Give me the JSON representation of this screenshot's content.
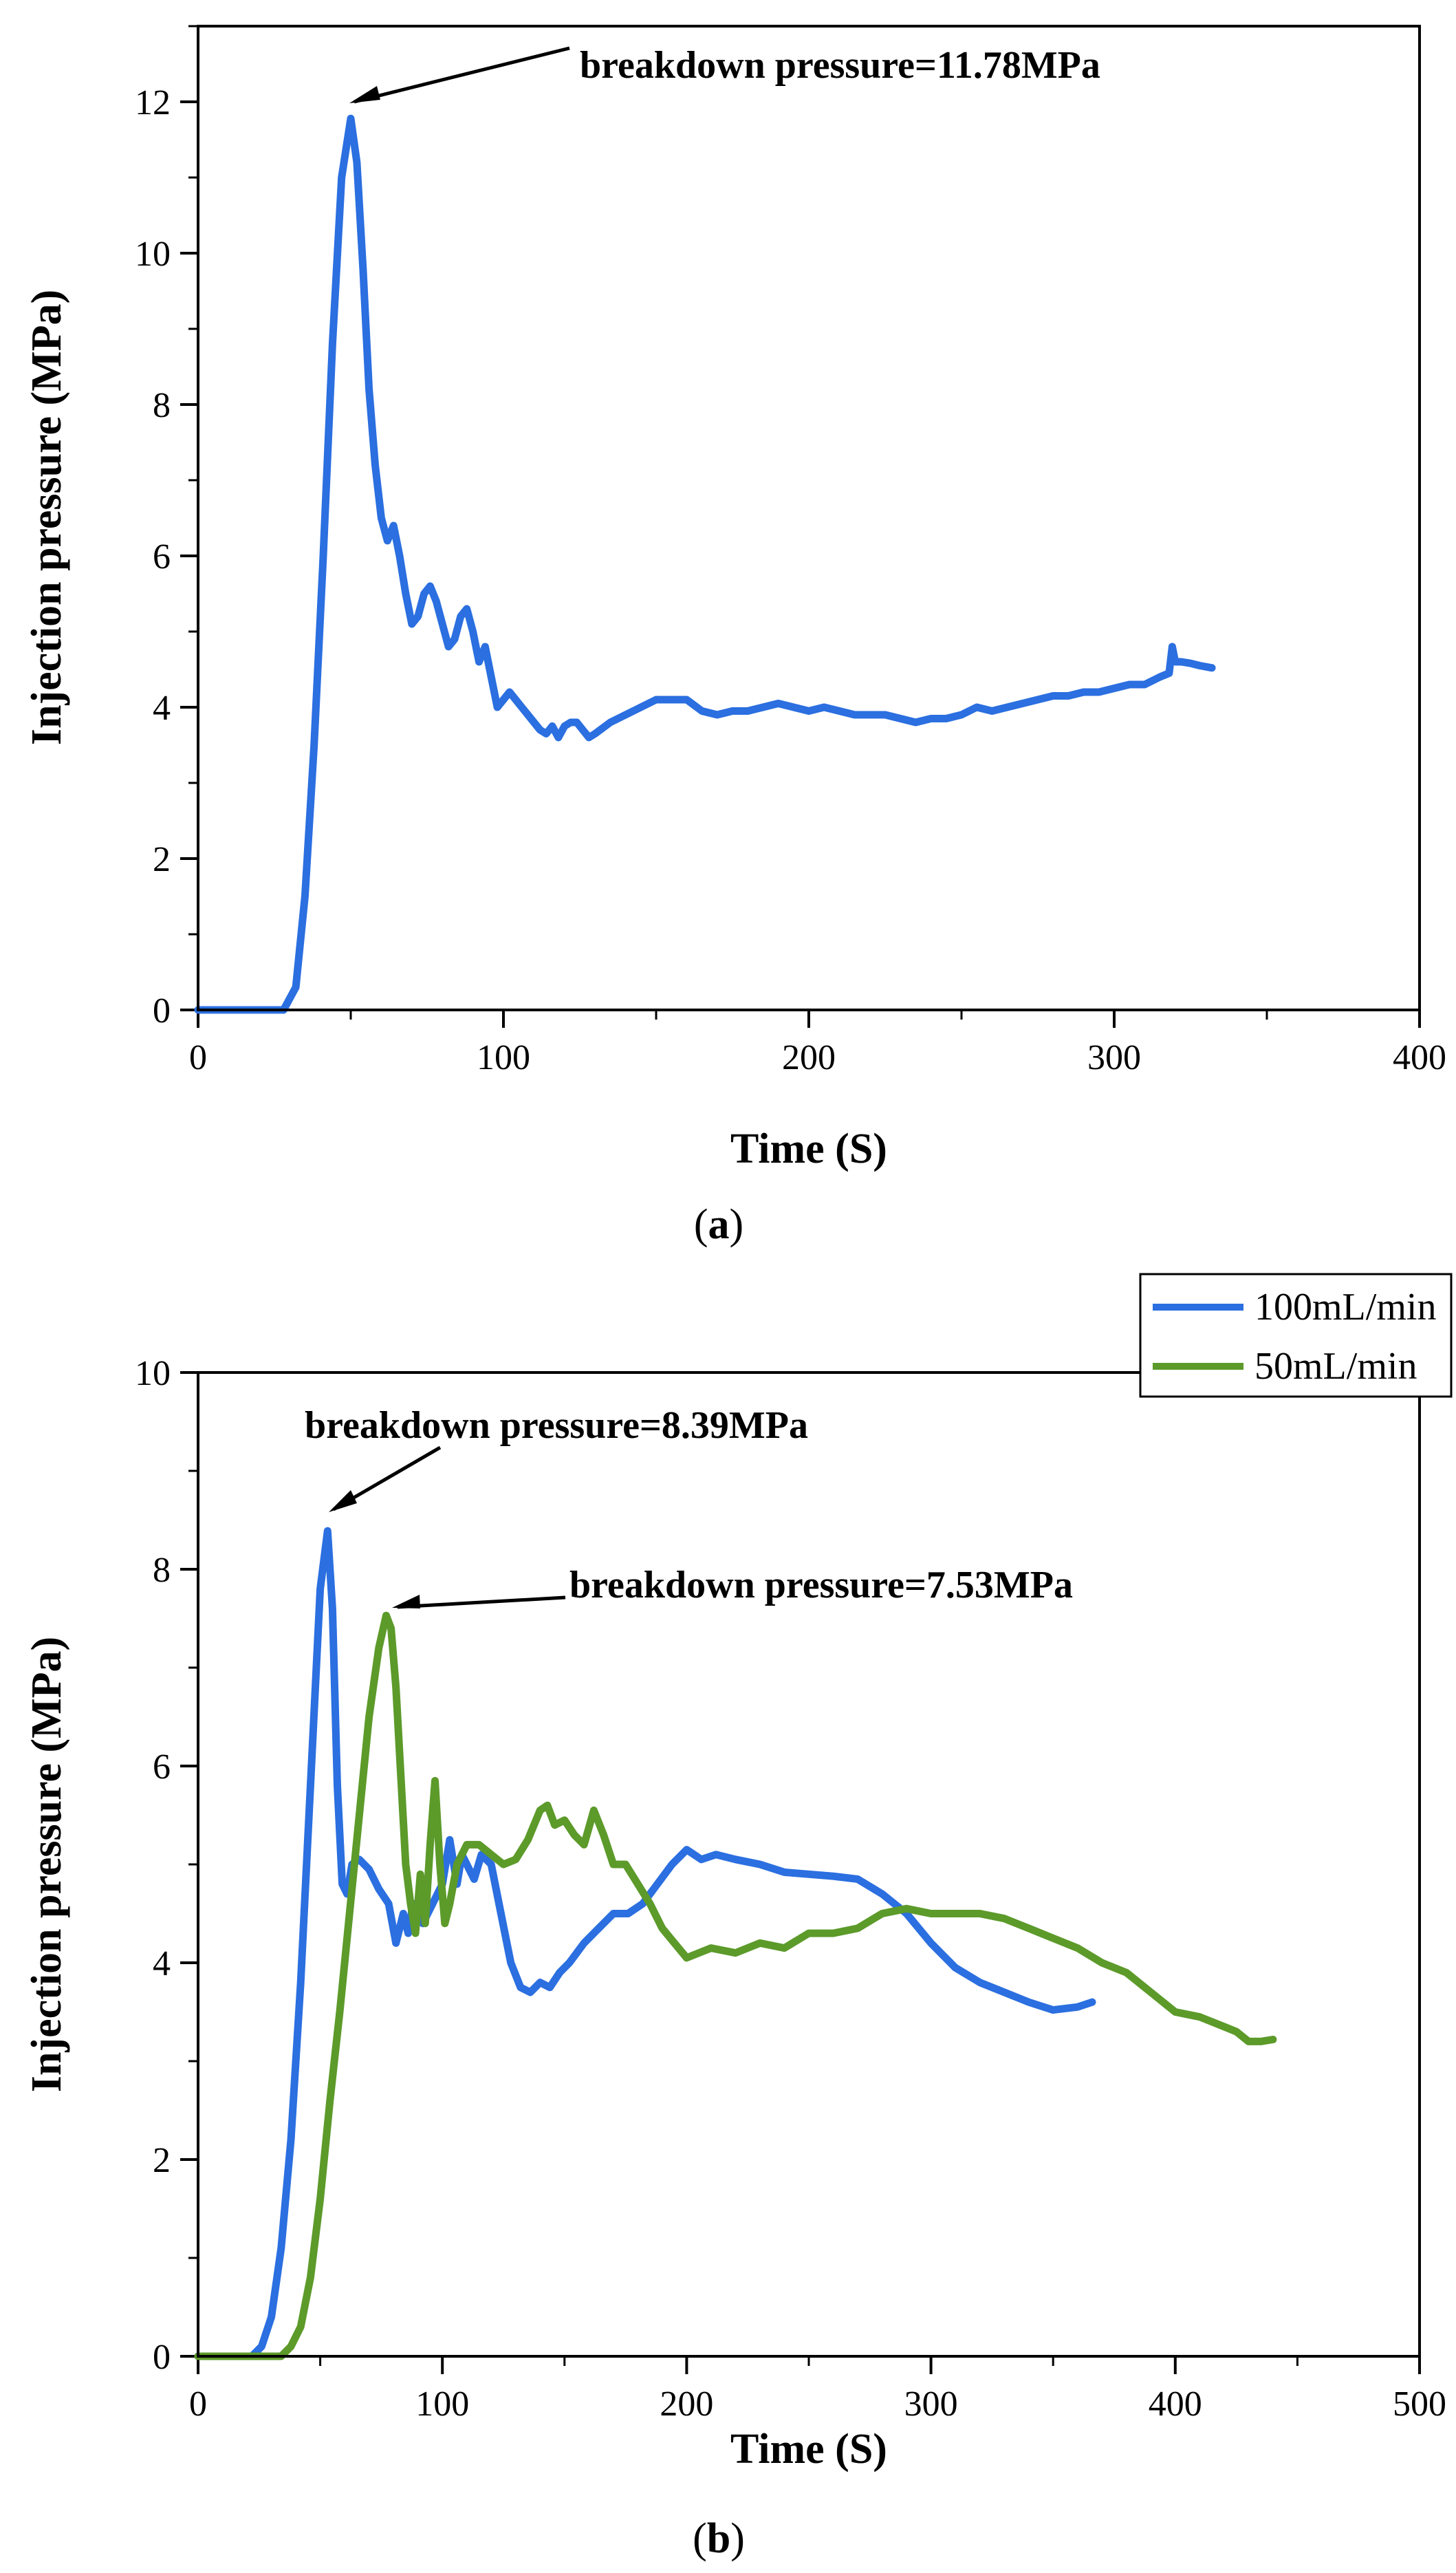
{
  "chart_data": [
    {
      "type": "line",
      "panel_label": "a",
      "xlabel": "Time (S)",
      "ylabel": "Injection pressure (MPa)",
      "xlim": [
        0,
        400
      ],
      "ylim": [
        0,
        13
      ],
      "xticks": [
        0,
        100,
        200,
        300,
        400
      ],
      "yticks": [
        0,
        2,
        4,
        6,
        8,
        10,
        12
      ],
      "legend": null,
      "series": [
        {
          "name": "100mL/min",
          "color": "#2b6fe0",
          "x": [
            0,
            28,
            32,
            35,
            38,
            41,
            44,
            47,
            50,
            52,
            54,
            56,
            58,
            60,
            62,
            64,
            66,
            68,
            70,
            72,
            74,
            76,
            78,
            80,
            82,
            84,
            86,
            88,
            90,
            92,
            94,
            96,
            98,
            100,
            102,
            104,
            106,
            108,
            110,
            112,
            114,
            116,
            118,
            120,
            122,
            124,
            126,
            128,
            130,
            135,
            140,
            145,
            150,
            155,
            160,
            165,
            170,
            175,
            180,
            185,
            190,
            195,
            200,
            205,
            210,
            215,
            220,
            225,
            230,
            235,
            240,
            245,
            250,
            255,
            260,
            265,
            270,
            275,
            280,
            285,
            290,
            295,
            300,
            305,
            310,
            315,
            318,
            319,
            320,
            322,
            325,
            328,
            332
          ],
          "y": [
            0,
            0,
            0.3,
            1.5,
            3.5,
            6.0,
            8.8,
            11.0,
            11.78,
            11.2,
            9.8,
            8.2,
            7.2,
            6.5,
            6.2,
            6.4,
            6.0,
            5.5,
            5.1,
            5.2,
            5.5,
            5.6,
            5.4,
            5.1,
            4.8,
            4.9,
            5.2,
            5.3,
            5.0,
            4.6,
            4.8,
            4.4,
            4.0,
            4.1,
            4.2,
            4.1,
            4.0,
            3.9,
            3.8,
            3.7,
            3.65,
            3.75,
            3.6,
            3.75,
            3.8,
            3.8,
            3.7,
            3.6,
            3.65,
            3.8,
            3.9,
            4.0,
            4.1,
            4.1,
            4.1,
            3.95,
            3.9,
            3.95,
            3.95,
            4.0,
            4.05,
            4.0,
            3.95,
            4.0,
            3.95,
            3.9,
            3.9,
            3.9,
            3.85,
            3.8,
            3.85,
            3.85,
            3.9,
            4.0,
            3.95,
            4.0,
            4.05,
            4.1,
            4.15,
            4.15,
            4.2,
            4.2,
            4.25,
            4.3,
            4.3,
            4.4,
            4.45,
            4.8,
            4.6,
            4.6,
            4.58,
            4.55,
            4.52
          ]
        }
      ],
      "annotations": [
        {
          "text": "breakdown pressure=11.78MPa",
          "point": [
            50,
            11.78
          ]
        }
      ]
    },
    {
      "type": "line",
      "panel_label": "b",
      "xlabel": "Time (S)",
      "ylabel": "Injection pressure (MPa)",
      "xlim": [
        0,
        500
      ],
      "ylim": [
        0,
        10
      ],
      "xticks": [
        0,
        100,
        200,
        300,
        400,
        500
      ],
      "yticks": [
        0,
        2,
        4,
        6,
        8,
        10
      ],
      "legend": "top-right",
      "series": [
        {
          "name": "100mL/min",
          "color": "#2b6fe0",
          "x": [
            0,
            22,
            26,
            30,
            34,
            38,
            42,
            46,
            50,
            53,
            55,
            57,
            59,
            61,
            63,
            66,
            70,
            74,
            78,
            81,
            84,
            86,
            88,
            92,
            96,
            100,
            103,
            106,
            108,
            110,
            113,
            116,
            120,
            124,
            128,
            132,
            136,
            140,
            144,
            148,
            152,
            158,
            164,
            170,
            176,
            182,
            188,
            194,
            200,
            206,
            212,
            220,
            230,
            240,
            250,
            260,
            270,
            280,
            290,
            300,
            310,
            320,
            330,
            340,
            350,
            360,
            366
          ],
          "y": [
            0,
            0,
            0.1,
            0.4,
            1.1,
            2.2,
            3.8,
            5.8,
            7.8,
            8.39,
            7.6,
            5.8,
            4.8,
            4.7,
            5.0,
            5.05,
            4.95,
            4.75,
            4.6,
            4.2,
            4.5,
            4.3,
            4.6,
            4.4,
            4.6,
            4.8,
            5.25,
            4.8,
            5.1,
            5.0,
            4.85,
            5.1,
            5.0,
            4.5,
            4.0,
            3.75,
            3.7,
            3.8,
            3.75,
            3.9,
            4.0,
            4.2,
            4.35,
            4.5,
            4.5,
            4.6,
            4.8,
            5.0,
            5.15,
            5.05,
            5.1,
            5.05,
            5.0,
            4.92,
            4.9,
            4.88,
            4.85,
            4.7,
            4.5,
            4.2,
            3.95,
            3.8,
            3.7,
            3.6,
            3.52,
            3.55,
            3.6
          ]
        },
        {
          "name": "50mL/min",
          "color": "#5c9a2a",
          "x": [
            0,
            34,
            38,
            42,
            46,
            50,
            54,
            58,
            62,
            66,
            70,
            74,
            77,
            79,
            81,
            83,
            85,
            87,
            89,
            91,
            93,
            95,
            97,
            99,
            101,
            103,
            106,
            110,
            115,
            120,
            125,
            130,
            135,
            140,
            143,
            146,
            150,
            154,
            158,
            162,
            166,
            170,
            175,
            180,
            185,
            190,
            195,
            200,
            205,
            210,
            220,
            230,
            240,
            250,
            260,
            270,
            280,
            290,
            300,
            310,
            320,
            330,
            340,
            350,
            360,
            370,
            380,
            390,
            400,
            410,
            420,
            425,
            430,
            435,
            440
          ],
          "y": [
            0,
            0,
            0.1,
            0.3,
            0.8,
            1.6,
            2.6,
            3.5,
            4.5,
            5.5,
            6.5,
            7.2,
            7.53,
            7.4,
            6.8,
            5.9,
            5.0,
            4.6,
            4.3,
            4.9,
            4.4,
            5.2,
            5.85,
            5.0,
            4.4,
            4.6,
            5.0,
            5.2,
            5.2,
            5.1,
            5.0,
            5.05,
            5.25,
            5.55,
            5.6,
            5.4,
            5.45,
            5.3,
            5.2,
            5.55,
            5.3,
            5.0,
            5.0,
            4.8,
            4.6,
            4.35,
            4.2,
            4.05,
            4.1,
            4.15,
            4.1,
            4.2,
            4.15,
            4.3,
            4.3,
            4.35,
            4.5,
            4.55,
            4.5,
            4.5,
            4.5,
            4.45,
            4.35,
            4.25,
            4.15,
            4.0,
            3.9,
            3.7,
            3.5,
            3.45,
            3.35,
            3.3,
            3.2,
            3.2,
            3.22
          ]
        }
      ],
      "annotations": [
        {
          "text": "breakdown pressure=8.39MPa",
          "point": [
            53,
            8.39
          ]
        },
        {
          "text": "breakdown pressure=7.53MPa",
          "point": [
            80,
            7.53
          ]
        }
      ]
    }
  ]
}
